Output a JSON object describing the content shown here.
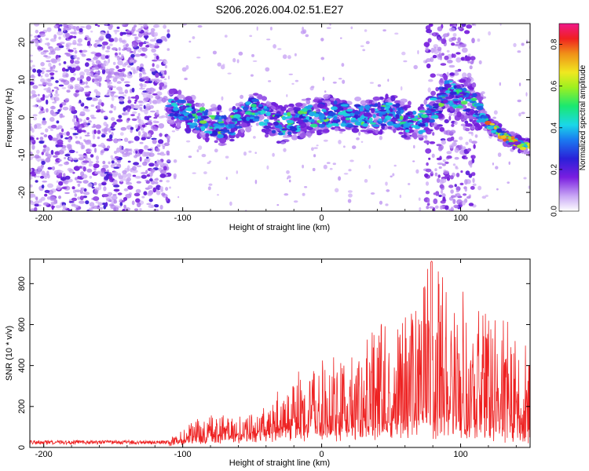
{
  "page": {
    "title": "S206.2026.004.02.51.E27"
  },
  "chart_data": [
    {
      "type": "heatmap",
      "name": "spectrogram",
      "title": "S206.2026.004.02.51.E27",
      "xlabel": "Height of straight line (km)",
      "ylabel": "Frequency (Hz)",
      "xlim": [
        -210,
        150
      ],
      "ylim": [
        -25,
        25
      ],
      "x_ticks": [
        -200,
        -100,
        0,
        100
      ],
      "y_ticks": [
        -20,
        -10,
        0,
        10,
        20
      ],
      "colorbar": {
        "label": "Normalized spectral amplitude",
        "range": [
          0.0,
          0.9
        ],
        "ticks": [
          "0.0",
          "0.2",
          "0.4",
          "0.6",
          "0.8"
        ],
        "tick_values": [
          0.0,
          0.2,
          0.4,
          0.6,
          0.8
        ]
      },
      "description_features": {
        "noise_region_km": [
          -210,
          -110
        ],
        "signal_track": [
          {
            "x": -110,
            "y": 3
          },
          {
            "x": -90,
            "y": 0
          },
          {
            "x": -70,
            "y": -3
          },
          {
            "x": -50,
            "y": 2
          },
          {
            "x": -30,
            "y": -2
          },
          {
            "x": -10,
            "y": 0
          },
          {
            "x": 10,
            "y": 1
          },
          {
            "x": 30,
            "y": 0
          },
          {
            "x": 50,
            "y": 1
          },
          {
            "x": 70,
            "y": -2
          },
          {
            "x": 80,
            "y": 2
          },
          {
            "x": 90,
            "y": 7
          },
          {
            "x": 110,
            "y": 3
          },
          {
            "x": 120,
            "y": -2
          },
          {
            "x": 135,
            "y": -6
          },
          {
            "x": 150,
            "y": -8
          }
        ]
      }
    },
    {
      "type": "line",
      "name": "snr",
      "xlabel": "Height of straight line (km)",
      "ylabel": "SNR (10 * v/v)",
      "xlim": [
        -210,
        150
      ],
      "ylim": [
        0,
        920
      ],
      "x_ticks": [
        -200,
        -100,
        0,
        100
      ],
      "y_ticks": [
        0,
        200,
        400,
        600,
        800
      ],
      "series_color": "#ee2222",
      "envelope": [
        {
          "x": -210,
          "baseline": 15,
          "peak": 35
        },
        {
          "x": -110,
          "baseline": 15,
          "peak": 35
        },
        {
          "x": -100,
          "baseline": 25,
          "peak": 100
        },
        {
          "x": -80,
          "baseline": 30,
          "peak": 160
        },
        {
          "x": -60,
          "baseline": 40,
          "peak": 170
        },
        {
          "x": -40,
          "baseline": 60,
          "peak": 220
        },
        {
          "x": -20,
          "baseline": 70,
          "peak": 350
        },
        {
          "x": 0,
          "baseline": 60,
          "peak": 430
        },
        {
          "x": 20,
          "baseline": 70,
          "peak": 480
        },
        {
          "x": 40,
          "baseline": 80,
          "peak": 600
        },
        {
          "x": 60,
          "baseline": 90,
          "peak": 660
        },
        {
          "x": 79,
          "baseline": 100,
          "peak": 910
        },
        {
          "x": 100,
          "baseline": 80,
          "peak": 780
        },
        {
          "x": 120,
          "baseline": 60,
          "peak": 640
        },
        {
          "x": 140,
          "baseline": 50,
          "peak": 610
        },
        {
          "x": 150,
          "baseline": 40,
          "peak": 500
        }
      ]
    }
  ]
}
